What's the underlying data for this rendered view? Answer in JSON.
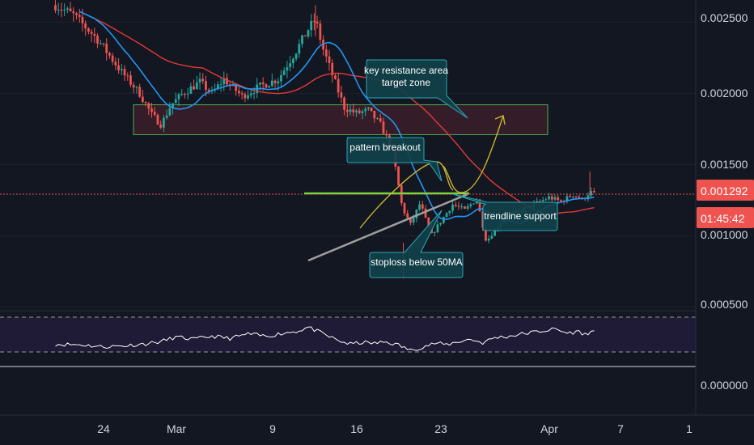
{
  "colors": {
    "background": "#131722",
    "grid": "#1e222d",
    "up": "#26a69a",
    "down": "#ef5350",
    "ma_fast": "#2196f3",
    "ma_slow": "#e53935",
    "zone_fill": "#3b1f29",
    "zone_border": "#4caf50",
    "callout_fill": "#11414a",
    "callout_border": "#2aa8b6",
    "trend_green": "#7fd13b",
    "trend_grey": "#9e9e9e",
    "projection": "#c7b330",
    "rsi_band": "#1f1a35",
    "rsi_line": "#ffffff",
    "price_badge": "#ef5350"
  },
  "chart_data": {
    "type": "candlestick",
    "x_labels": [
      "24",
      "Mar",
      "9",
      "16",
      "23",
      "Apr",
      "7",
      "1"
    ],
    "y_ticks": [
      "0.002500",
      "0.002000",
      "0.001500",
      "0.001000",
      "0.000500"
    ],
    "rsi_ticks": [
      "0.000000"
    ],
    "ylim": [
      0.00031,
      0.00275
    ],
    "x_range_days": [
      "Feb 18",
      "Apr 15"
    ],
    "current_price": "0.001292",
    "countdown": "01:45:42",
    "resistance_zone": [
      0.00171,
      0.00192
    ],
    "annotations": [
      {
        "name": "resistance",
        "lines": [
          "key resistance area",
          "target zone"
        ]
      },
      {
        "name": "breakout",
        "lines": [
          "pattern breakout"
        ]
      },
      {
        "name": "trendline",
        "lines": [
          "trendline support"
        ]
      },
      {
        "name": "stoploss",
        "lines": [
          "stoploss below 50MA"
        ]
      }
    ],
    "price_anchors": [
      [
        20.0,
        0.00262
      ],
      [
        21.5,
        0.00255
      ],
      [
        23.5,
        0.00238
      ],
      [
        25.5,
        0.00215
      ],
      [
        27.0,
        0.002
      ],
      [
        28.0,
        0.00185
      ],
      [
        28.8,
        0.00178
      ],
      [
        29.6,
        0.00192
      ],
      [
        30.6,
        0.002
      ],
      [
        32.0,
        0.00208
      ],
      [
        33.0,
        0.002
      ],
      [
        34.0,
        0.0021
      ],
      [
        35.5,
        0.00198
      ],
      [
        37.0,
        0.00205
      ],
      [
        38.5,
        0.0021
      ],
      [
        40.0,
        0.0023
      ],
      [
        41.0,
        0.00245
      ],
      [
        41.6,
        0.00252
      ],
      [
        42.2,
        0.00232
      ],
      [
        43.0,
        0.00213
      ],
      [
        44.0,
        0.0019
      ],
      [
        45.0,
        0.00186
      ],
      [
        46.0,
        0.00188
      ],
      [
        47.0,
        0.00178
      ],
      [
        48.0,
        0.0016
      ],
      [
        48.8,
        0.0012
      ],
      [
        49.5,
        0.00108
      ],
      [
        50.3,
        0.00123
      ],
      [
        51.2,
        0.001
      ],
      [
        52.0,
        0.0011
      ],
      [
        53.0,
        0.00122
      ],
      [
        54.0,
        0.00118
      ],
      [
        55.0,
        0.00126
      ],
      [
        55.8,
        0.00096
      ],
      [
        57.0,
        0.0011
      ],
      [
        58.0,
        0.00115
      ],
      [
        59.0,
        0.00119
      ],
      [
        60.0,
        0.00123
      ],
      [
        61.0,
        0.00127
      ],
      [
        62.0,
        0.00124
      ],
      [
        63.0,
        0.00129
      ],
      [
        63.8,
        0.00125
      ],
      [
        64.4,
        0.00131
      ],
      [
        64.8,
        0.00129
      ]
    ],
    "rsi_anchors": [
      [
        20.0,
        32
      ],
      [
        22.0,
        31
      ],
      [
        24.0,
        26
      ],
      [
        26.0,
        29
      ],
      [
        27.5,
        33
      ],
      [
        28.8,
        38
      ],
      [
        30.0,
        48
      ],
      [
        31.5,
        43
      ],
      [
        33.0,
        50
      ],
      [
        34.5,
        45
      ],
      [
        36.0,
        55
      ],
      [
        37.5,
        50
      ],
      [
        39.0,
        57
      ],
      [
        40.2,
        62
      ],
      [
        41.0,
        70
      ],
      [
        41.6,
        63
      ],
      [
        42.5,
        52
      ],
      [
        43.5,
        40
      ],
      [
        44.5,
        32
      ],
      [
        45.5,
        36
      ],
      [
        46.5,
        34
      ],
      [
        47.5,
        37
      ],
      [
        48.5,
        30
      ],
      [
        49.5,
        18
      ],
      [
        50.5,
        26
      ],
      [
        51.5,
        34
      ],
      [
        52.5,
        31
      ],
      [
        53.5,
        38
      ],
      [
        54.5,
        43
      ],
      [
        55.5,
        35
      ],
      [
        56.5,
        47
      ],
      [
        57.5,
        49
      ],
      [
        58.5,
        54
      ],
      [
        59.5,
        58
      ],
      [
        60.5,
        62
      ],
      [
        61.5,
        66
      ],
      [
        62.5,
        57
      ],
      [
        63.5,
        60
      ],
      [
        64.2,
        52
      ],
      [
        64.8,
        68
      ]
    ],
    "rsi_range": [
      0,
      100
    ],
    "rsi_bands": [
      70,
      30
    ]
  }
}
